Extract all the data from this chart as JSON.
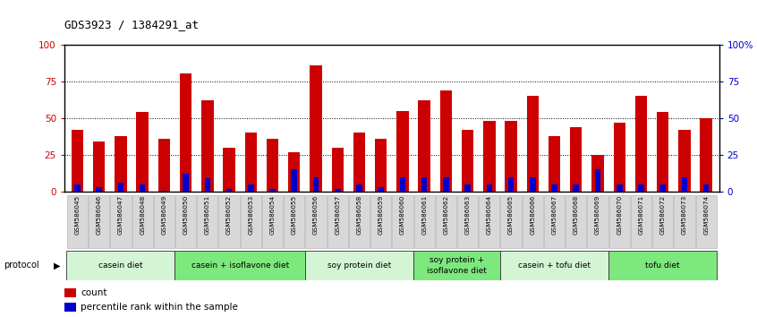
{
  "title": "GDS3923 / 1384291_at",
  "samples": [
    "GSM586045",
    "GSM586046",
    "GSM586047",
    "GSM586048",
    "GSM586049",
    "GSM586050",
    "GSM586051",
    "GSM586052",
    "GSM586053",
    "GSM586054",
    "GSM586055",
    "GSM586056",
    "GSM586057",
    "GSM586058",
    "GSM586059",
    "GSM586060",
    "GSM586061",
    "GSM586062",
    "GSM586063",
    "GSM586064",
    "GSM586065",
    "GSM586066",
    "GSM586067",
    "GSM586068",
    "GSM586069",
    "GSM586070",
    "GSM586071",
    "GSM586072",
    "GSM586073",
    "GSM586074"
  ],
  "count_values": [
    42,
    34,
    38,
    54,
    36,
    80,
    62,
    30,
    40,
    36,
    27,
    86,
    30,
    40,
    36,
    55,
    62,
    69,
    42,
    48,
    48,
    65,
    38,
    44,
    25,
    47,
    65,
    54,
    42,
    50
  ],
  "percentile_values": [
    5,
    3,
    6,
    5,
    1,
    12,
    9,
    2,
    5,
    2,
    15,
    10,
    2,
    5,
    3,
    10,
    10,
    10,
    5,
    5,
    10,
    10,
    5,
    5,
    15,
    5,
    5,
    5,
    10,
    5
  ],
  "groups": [
    {
      "label": "casein diet",
      "start": 0,
      "end": 5,
      "color": "#d4f5d4"
    },
    {
      "label": "casein + isoflavone diet",
      "start": 5,
      "end": 11,
      "color": "#7de87d"
    },
    {
      "label": "soy protein diet",
      "start": 11,
      "end": 16,
      "color": "#d4f5d4"
    },
    {
      "label": "soy protein +\nisoflavone diet",
      "start": 16,
      "end": 20,
      "color": "#7de87d"
    },
    {
      "label": "casein + tofu diet",
      "start": 20,
      "end": 25,
      "color": "#d4f5d4"
    },
    {
      "label": "tofu diet",
      "start": 25,
      "end": 30,
      "color": "#7de87d"
    }
  ],
  "bar_color": "#cc0000",
  "percentile_color": "#0000cc",
  "bg_color": "#ffffff",
  "ylim": [
    0,
    100
  ],
  "yticks": [
    0,
    25,
    50,
    75,
    100
  ],
  "ytick_labels_left": [
    "0",
    "25",
    "50",
    "75",
    "100"
  ],
  "ytick_labels_right": [
    "0",
    "25",
    "50",
    "75",
    "100%"
  ],
  "xtick_bg": "#d8d8d8",
  "xtick_border": "#aaaaaa"
}
